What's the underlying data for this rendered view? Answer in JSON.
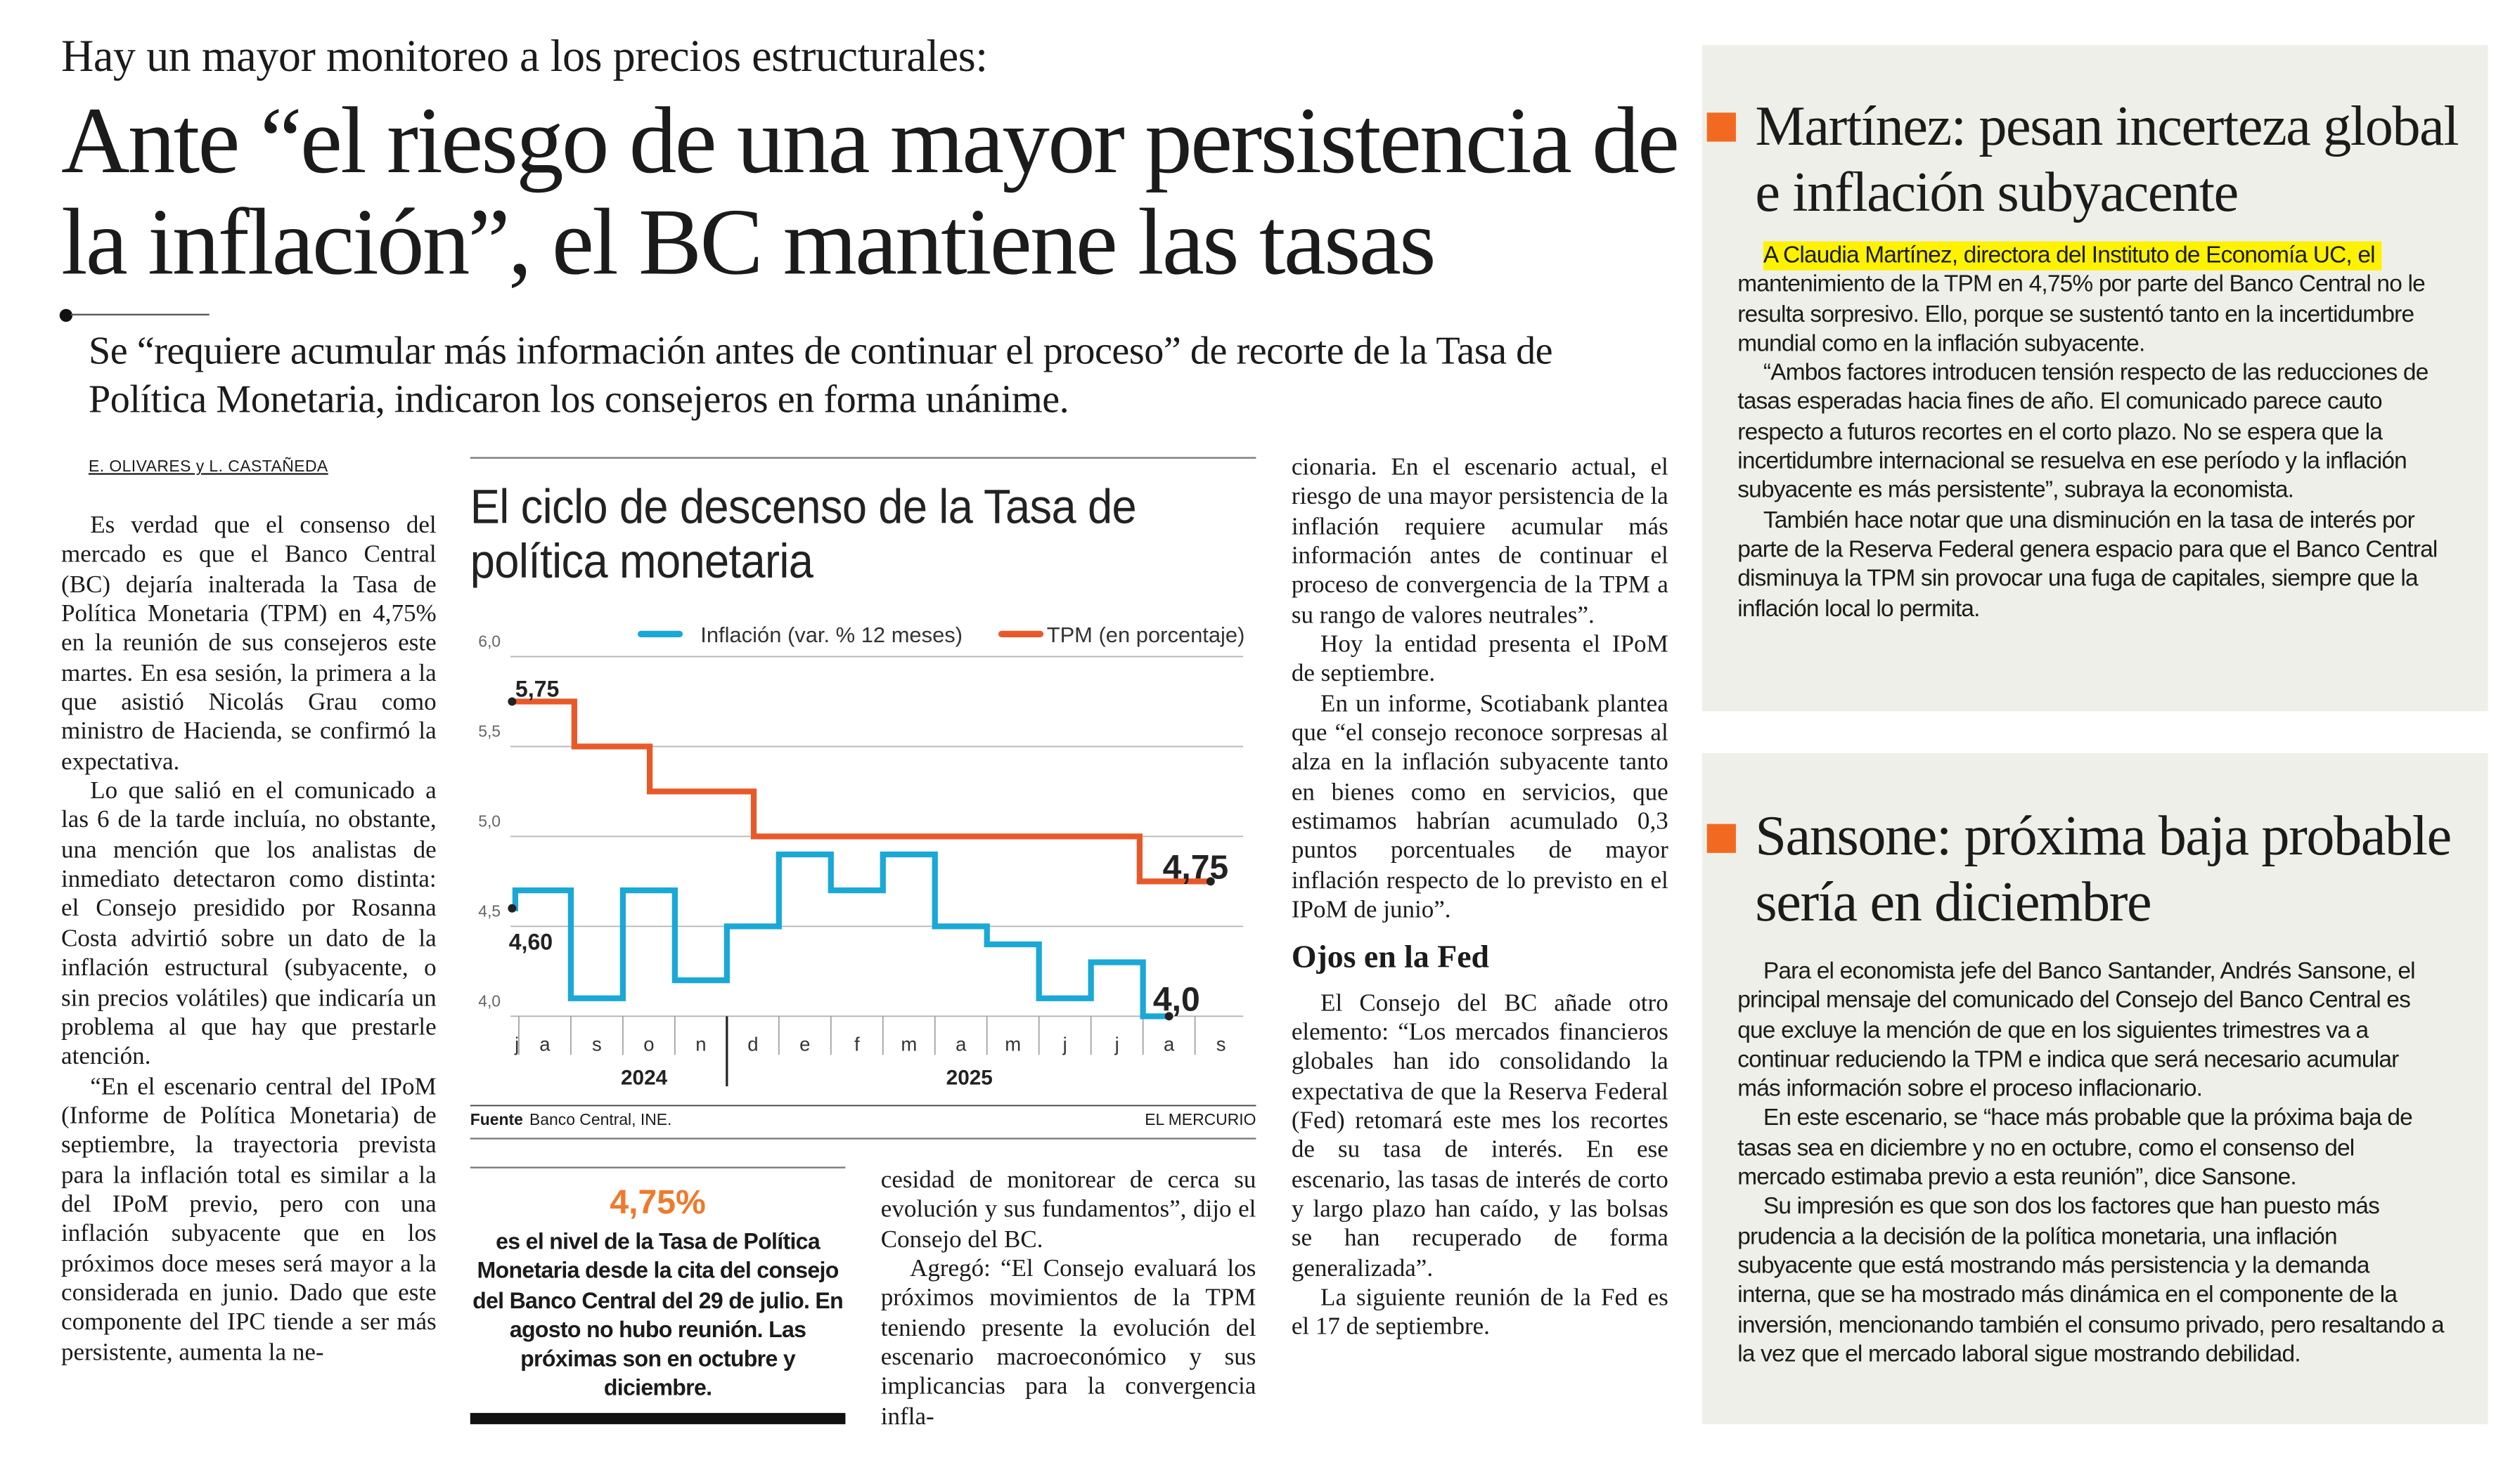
{
  "kicker": "Hay un mayor monitoreo a los precios estructurales:",
  "headline": "Ante “el riesgo de una mayor persistencia de la inflación”, el BC mantiene las tasas",
  "deck": "Se “requiere acumular más información antes de continuar el proceso” de recorte de la Tasa de Política Monetaria, indicaron los consejeros en forma unánime.",
  "byline": "E. OLIVARES y L. CASTAÑEDA",
  "col1": [
    "Es verdad que el consenso del mercado es que el Banco Central (BC) dejaría inalterada la Tasa de Política Monetaria (TPM) en 4,75% en la reunión de sus consejeros este martes. En esa sesión, la primera a la que asistió Nicolás Grau como ministro de Hacienda, se confirmó la expectativa.",
    "Lo que salió en el comunicado a las 6 de la tarde incluía, no obstante, una mención que los analistas de inmediato detectaron como distinta: el Consejo presidido por Rosanna Costa advirtió sobre un dato de la inflación estructural (subyacente, o sin precios volátiles) que indicaría un problema al que hay que prestarle atención.",
    "“En el escenario central del IPoM (Informe de Política Monetaria) de septiembre, la trayectoria prevista para la inflación total es similar a la del IPoM previo, pero con una inflación subyacente que en los próximos doce meses será mayor a la considerada en junio. Dado que este componente del IPC tiende a ser más persistente, aumenta la ne-"
  ],
  "col3": [
    "cesidad de monitorear de cerca su evolución y sus fundamentos”, dijo el Consejo del BC.",
    "Agregó: “El Consejo evaluará los próximos movimientos de la TPM teniendo presente la evolución del escenario macroeconómico y sus implicancias para la convergencia infla-"
  ],
  "col4": {
    "paragraphs_before": [
      "cionaria. En el escenario actual, el riesgo de una mayor persistencia de la inflación requiere acumular más información antes de continuar el proceso de convergencia de la TPM a su rango de valores neutrales”.",
      "Hoy la entidad presenta el IPoM de septiembre.",
      "En un informe, Scotiabank plantea que “el consejo reconoce sorpresas al alza en la inflación subyacente tanto en bienes como en servicios, que estimamos habrían acumulado 0,3 puntos porcentuales de mayor inflación respecto de lo previsto en el IPoM de junio”."
    ],
    "subheading": "Ojos en la Fed",
    "paragraphs_after": [
      "El Consejo del BC añade otro elemento: “Los mercados financieros globales han ido consolidando la expectativa de que la Reserva Federal (Fed) retomará este mes los recortes de su tasa de interés. En ese escenario, las tasas de interés de corto y largo plazo han caído, y las bolsas se han recuperado de forma generalizada”.",
      "La siguiente reunión de la Fed es el 17 de septiembre."
    ]
  },
  "highlight": {
    "value": "4,75%",
    "text": "es el nivel de la Tasa de Política Monetaria desde la cita del consejo del Banco Central del 29 de julio. En agosto no hubo reunión. Las próximas son en octubre y diciembre.",
    "value_color": "#ee7a2c"
  },
  "chart_data": {
    "type": "line",
    "step": true,
    "title": "El ciclo de descenso de la Tasa de política monetaria",
    "source_label": "Fuente",
    "source": "Banco Central, INE.",
    "brand": "EL MERCURIO",
    "ylim": [
      4.0,
      6.0
    ],
    "yticks": [
      "6,0",
      "5,5",
      "5,0",
      "4,5",
      "4,0"
    ],
    "ytick_values": [
      6.0,
      5.5,
      5.0,
      4.5,
      4.0
    ],
    "grid": true,
    "legend_position": "top-right",
    "x_months": [
      "j",
      "a",
      "s",
      "o",
      "n",
      "d",
      "e",
      "f",
      "m",
      "a",
      "m",
      "j",
      "j",
      "a",
      "s"
    ],
    "x_years": [
      {
        "label": "2024",
        "months": [
          "2024-07",
          "2024-12"
        ]
      },
      {
        "label": "2025",
        "months": [
          "2025-01",
          "2025-09"
        ]
      }
    ],
    "series": [
      {
        "name": "Inflación (var. % 12 meses)",
        "color": "#1aa8d6",
        "points": [
          {
            "month": "2024-07",
            "value": 4.6
          },
          {
            "month": "2024-08",
            "value": 4.7
          },
          {
            "month": "2024-09",
            "value": 4.1
          },
          {
            "month": "2024-10",
            "value": 4.7
          },
          {
            "month": "2024-11",
            "value": 4.2
          },
          {
            "month": "2024-12",
            "value": 4.5
          },
          {
            "month": "2025-01",
            "value": 4.9
          },
          {
            "month": "2025-02",
            "value": 4.7
          },
          {
            "month": "2025-03",
            "value": 4.9
          },
          {
            "month": "2025-04",
            "value": 4.5
          },
          {
            "month": "2025-05",
            "value": 4.4
          },
          {
            "month": "2025-06",
            "value": 4.1
          },
          {
            "month": "2025-07",
            "value": 4.3
          },
          {
            "month": "2025-08",
            "value": 4.0
          }
        ],
        "start_label": "4,60",
        "end_label": "4,0"
      },
      {
        "name": "TPM (en porcentaje)",
        "color": "#e8592a",
        "steps": [
          {
            "date": "2024-07-29",
            "value": 5.75
          },
          {
            "date": "2024-09-03",
            "value": 5.5
          },
          {
            "date": "2024-10-17",
            "value": 5.25
          },
          {
            "date": "2024-12-17",
            "value": 5.0
          },
          {
            "date": "2025-07-30",
            "value": 4.75
          },
          {
            "date": "2025-09-10",
            "value": 4.75
          }
        ],
        "start_label": "5,75",
        "end_label": "4,75"
      }
    ]
  },
  "sidebar": [
    {
      "title": "Martínez: pesan incerteza global e inflación subyacente",
      "accent": "#f26a21",
      "highlight_color": "#fff200",
      "highlighted_lead": "A Claudia Martínez, directora del Instituto de Economía UC, el",
      "lead_rest": " mantenimiento de la TPM en 4,75% por parte del Banco Central no le resulta sorpresivo. Ello, porque se sustentó tanto en la incertidumbre mundial como en la inflación subyacente.",
      "paragraphs": [
        "“Ambos factores introducen tensión respecto de las reducciones de tasas esperadas hacia fines de año. El comunicado parece cauto respecto a futuros recortes en el corto plazo. No se espera que la incertidumbre internacional se resuelva en ese período y la inflación subyacente es más persistente”, subraya la economista.",
        "También hace notar que una disminución en la tasa de interés por parte de la Reserva Federal genera espacio para que el Banco Central disminuya la TPM sin provocar una fuga de capitales, siempre que la inflación local lo permita."
      ]
    },
    {
      "title": "Sansone: próxima baja probable sería en diciembre",
      "accent": "#f26a21",
      "paragraphs": [
        "Para el economista jefe del Banco Santander, Andrés Sansone, el principal mensaje del comunicado del Consejo del Banco Central es que excluye la mención de que en los siguientes trimestres va a continuar reduciendo la TPM e indica que será necesario acumular más información sobre el proceso inflacionario.",
        "En este escenario, se “hace más probable que la próxima baja de tasas sea en diciembre y no en octubre, como el consenso del mercado estimaba previo a esta reunión”, dice Sansone.",
        "Su impresión es que son dos los factores que han puesto más prudencia a la decisión de la política monetaria, una inflación subyacente que está mostrando más persistencia y la demanda interna, que se ha mostrado más dinámica en el componente de la inversión, mencionando también el consumo privado, pero resaltando a la vez que el mercado laboral sigue mostrando debilidad."
      ]
    }
  ]
}
